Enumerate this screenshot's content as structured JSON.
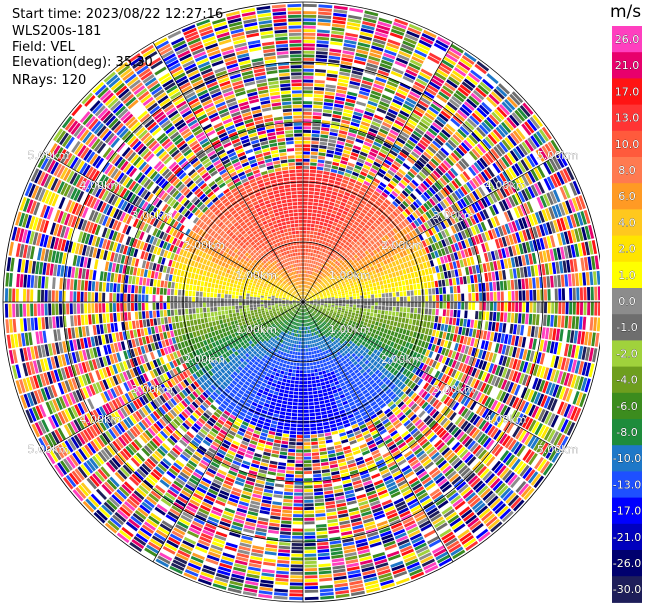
{
  "header": {
    "start_time": "Start time: 2023/08/22 12:27:16",
    "instrument": "WLS200s-181",
    "field": "Field: VEL",
    "elevation": "Elevation(deg): 35.30",
    "nrays": "NRays: 120"
  },
  "colorbar": {
    "unit": "m/s",
    "ticks": [
      "26.0",
      "21.0",
      "17.0",
      "13.0",
      "10.0",
      "8.0",
      "6.0",
      "4.0",
      "2.0",
      "1.0",
      "0.0",
      "-1.0",
      "-2.0",
      "-4.0",
      "-6.0",
      "-8.0",
      "-10.0",
      "-13.0",
      "-17.0",
      "-21.0",
      "-26.0",
      "-30.0"
    ],
    "colors": [
      "#ff3fbf",
      "#e8006c",
      "#ff1414",
      "#ff3434",
      "#ff5a3c",
      "#ff7a50",
      "#ff9a24",
      "#ffc81e",
      "#ffe400",
      "#ffff00",
      "#8c8c8c",
      "#6e6e6e",
      "#a0d23c",
      "#6e9e1e",
      "#3c8c1e",
      "#1e8c3c",
      "#1e78c8",
      "#1e50ff",
      "#0000ff",
      "#0000be",
      "#00006e",
      "#1e1e5a"
    ]
  },
  "chart_data": {
    "type": "ppi",
    "title": "",
    "field": "VEL",
    "units": "m/s",
    "n_rays": 120,
    "elevation_deg": 35.3,
    "range_rings_km": [
      1.0,
      2.0,
      3.0,
      4.0,
      5.0
    ],
    "ring_labels": [
      "1.00km",
      "2.00km",
      "3.00km",
      "4.00km",
      "5.00km"
    ],
    "max_range_km": 5.0,
    "valid_data_range_km": 2.2,
    "colorbar_range": [
      -30.0,
      26.0
    ],
    "wind_pattern": "positive velocities (red/orange/yellow) toward the north, negative velocities (green/blue) toward the south, noisy data beyond about 2.2 km"
  }
}
